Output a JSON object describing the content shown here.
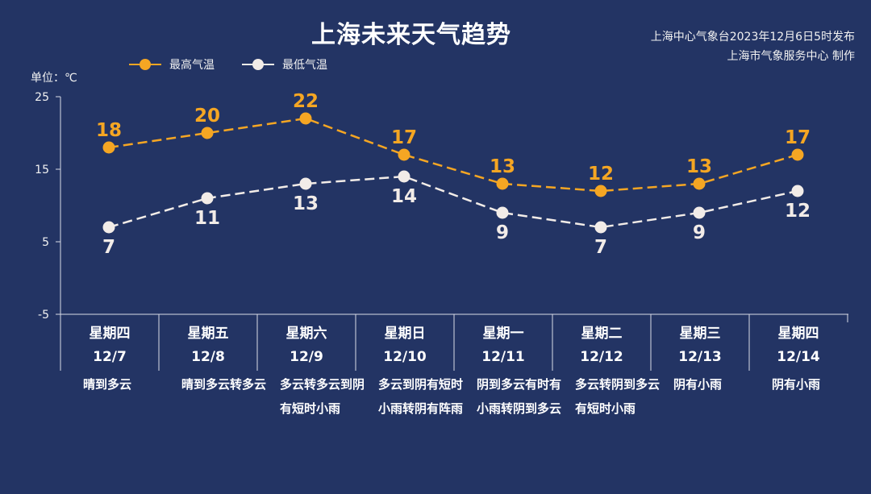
{
  "header": {
    "title": "上海未来天气趋势",
    "source_line1": "上海中心气象台2023年12月6日5时发布",
    "source_line2": "上海市气象服务中心 制作"
  },
  "legend": {
    "high_label": "最高气温",
    "low_label": "最低气温"
  },
  "unit_label": "单位：℃",
  "colors": {
    "background": "#233464",
    "high": "#f5a623",
    "low": "#f2ece8",
    "axis": "#d8dbe6"
  },
  "days": [
    {
      "weekday": "星期四",
      "date": "12/7",
      "desc": "晴到多云"
    },
    {
      "weekday": "星期五",
      "date": "12/8",
      "desc": "晴到多云转多云"
    },
    {
      "weekday": "星期六",
      "date": "12/9",
      "desc": "多云转多云到阴有短时小雨"
    },
    {
      "weekday": "星期日",
      "date": "12/10",
      "desc": "多云到阴有短时小雨转阴有阵雨"
    },
    {
      "weekday": "星期一",
      "date": "12/11",
      "desc": "阴到多云有时有小雨转阴到多云"
    },
    {
      "weekday": "星期二",
      "date": "12/12",
      "desc": "多云转阴到多云有短时小雨"
    },
    {
      "weekday": "星期三",
      "date": "12/13",
      "desc": "阴有小雨"
    },
    {
      "weekday": "星期四",
      "date": "12/14",
      "desc": "阴有小雨"
    }
  ],
  "chart_data": {
    "type": "line",
    "title": "上海未来天气趋势",
    "ylabel": "单位：℃",
    "categories": [
      "12/7",
      "12/8",
      "12/9",
      "12/10",
      "12/11",
      "12/12",
      "12/13",
      "12/14"
    ],
    "yticks": [
      25,
      15,
      5,
      -5
    ],
    "ylim": [
      -5,
      25
    ],
    "series": [
      {
        "name": "最高气温",
        "values": [
          18,
          20,
          22,
          17,
          13,
          12,
          13,
          17
        ]
      },
      {
        "name": "最低气温",
        "values": [
          7,
          11,
          13,
          14,
          9,
          7,
          9,
          12
        ]
      }
    ],
    "grid": false,
    "legend_position": "top-left",
    "line_style": "dashed"
  }
}
